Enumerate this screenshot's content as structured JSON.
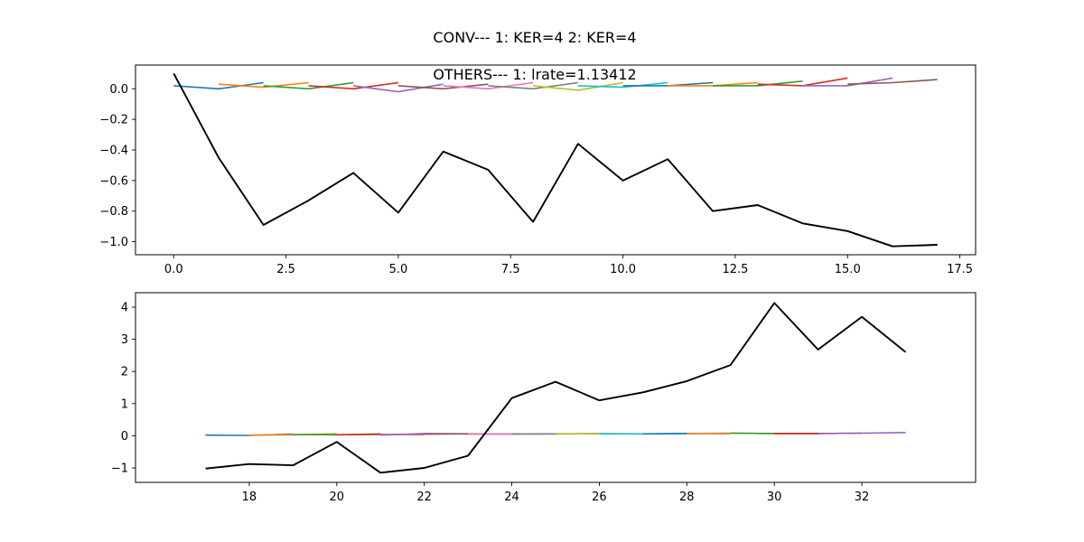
{
  "figure": {
    "suptitle": "CONV--- 1: KER=4   2: KER=4"
  },
  "chart_data": [
    {
      "type": "line",
      "title": "OTHERS--- 1: lrate=1.13412",
      "xlabel": "",
      "ylabel": "",
      "xlim": [
        -0.85,
        17.85
      ],
      "ylim": [
        -1.085,
        0.155
      ],
      "xticks": [
        0.0,
        2.5,
        5.0,
        7.5,
        10.0,
        12.5,
        15.0,
        17.5
      ],
      "xtick_labels": [
        "0.0",
        "2.5",
        "5.0",
        "7.5",
        "10.0",
        "12.5",
        "15.0",
        "17.5"
      ],
      "yticks": [
        0.0,
        -0.2,
        -0.4,
        -0.6,
        -0.8,
        -1.0
      ],
      "ytick_labels": [
        "0.0",
        "−0.2",
        "−0.4",
        "−0.6",
        "−0.8",
        "−1.0"
      ],
      "grid": false,
      "main_series": {
        "color": "#000000",
        "x": [
          0,
          1,
          2,
          3,
          4,
          5,
          6,
          7,
          8,
          9,
          10,
          11,
          12,
          13,
          14,
          15,
          16,
          17
        ],
        "y": [
          0.1,
          -0.45,
          -0.89,
          -0.73,
          -0.55,
          -0.81,
          -0.41,
          -0.53,
          -0.87,
          -0.36,
          -0.6,
          -0.46,
          -0.8,
          -0.76,
          -0.88,
          -0.93,
          -1.03,
          -1.02
        ]
      },
      "segments": [
        {
          "color": "#1f77b4",
          "x": [
            0,
            1,
            2
          ],
          "y": [
            0.02,
            0.0,
            0.04
          ]
        },
        {
          "color": "#ff7f0e",
          "x": [
            1,
            2,
            3
          ],
          "y": [
            0.03,
            0.01,
            0.04
          ]
        },
        {
          "color": "#2ca02c",
          "x": [
            2,
            3,
            4
          ],
          "y": [
            0.02,
            0.0,
            0.04
          ]
        },
        {
          "color": "#d62728",
          "x": [
            3,
            4,
            5
          ],
          "y": [
            0.02,
            0.0,
            0.04
          ]
        },
        {
          "color": "#9467bd",
          "x": [
            4,
            5,
            6
          ],
          "y": [
            0.02,
            -0.02,
            0.03
          ]
        },
        {
          "color": "#8c564b",
          "x": [
            5,
            6,
            7
          ],
          "y": [
            0.02,
            0.0,
            0.03
          ]
        },
        {
          "color": "#e377c2",
          "x": [
            6,
            7,
            8
          ],
          "y": [
            0.02,
            0.0,
            0.04
          ]
        },
        {
          "color": "#7f7f7f",
          "x": [
            7,
            8,
            9
          ],
          "y": [
            0.02,
            0.0,
            0.04
          ]
        },
        {
          "color": "#bcbd22",
          "x": [
            8,
            9,
            10
          ],
          "y": [
            0.02,
            -0.01,
            0.04
          ]
        },
        {
          "color": "#17becf",
          "x": [
            9,
            10,
            11
          ],
          "y": [
            0.02,
            0.01,
            0.04
          ]
        },
        {
          "color": "#1f77b4",
          "x": [
            10,
            11,
            12
          ],
          "y": [
            0.02,
            0.02,
            0.04
          ]
        },
        {
          "color": "#ff7f0e",
          "x": [
            11,
            12,
            13
          ],
          "y": [
            0.02,
            0.02,
            0.04
          ]
        },
        {
          "color": "#2ca02c",
          "x": [
            12,
            13,
            14
          ],
          "y": [
            0.02,
            0.02,
            0.05
          ]
        },
        {
          "color": "#d62728",
          "x": [
            13,
            14,
            15
          ],
          "y": [
            0.03,
            0.02,
            0.07
          ]
        },
        {
          "color": "#9467bd",
          "x": [
            14,
            15,
            16
          ],
          "y": [
            0.02,
            0.02,
            0.07
          ]
        },
        {
          "color": "#8c564b",
          "x": [
            15,
            16,
            17
          ],
          "y": [
            0.03,
            0.04,
            0.06
          ]
        }
      ]
    },
    {
      "type": "line",
      "title": "",
      "xlabel": "",
      "ylabel": "",
      "xlim": [
        15.4,
        34.6
      ],
      "ylim": [
        -1.45,
        4.45
      ],
      "xticks": [
        18,
        20,
        22,
        24,
        26,
        28,
        30,
        32
      ],
      "xtick_labels": [
        "18",
        "20",
        "22",
        "24",
        "26",
        "28",
        "30",
        "32"
      ],
      "yticks": [
        4,
        3,
        2,
        1,
        0,
        -1
      ],
      "ytick_labels": [
        "4",
        "3",
        "2",
        "1",
        "0",
        "−1"
      ],
      "grid": false,
      "main_series": {
        "color": "#000000",
        "x": [
          17,
          18,
          19,
          20,
          21,
          22,
          23,
          24,
          25,
          26,
          27,
          28,
          29,
          30,
          31,
          32,
          33
        ],
        "y": [
          -1.02,
          -0.88,
          -0.92,
          -0.19,
          -1.15,
          -1.0,
          -0.62,
          1.17,
          1.68,
          1.1,
          1.35,
          1.7,
          2.2,
          4.13,
          2.68,
          3.7,
          2.6
        ]
      },
      "segments": [
        {
          "color": "#1f77b4",
          "x": [
            17,
            18,
            19
          ],
          "y": [
            0.02,
            0.01,
            0.05
          ]
        },
        {
          "color": "#ff7f0e",
          "x": [
            18,
            19,
            20
          ],
          "y": [
            0.02,
            0.03,
            0.06
          ]
        },
        {
          "color": "#2ca02c",
          "x": [
            19,
            20,
            21
          ],
          "y": [
            0.04,
            0.03,
            0.06
          ]
        },
        {
          "color": "#d62728",
          "x": [
            20,
            21,
            22
          ],
          "y": [
            0.03,
            0.04,
            0.04
          ]
        },
        {
          "color": "#9467bd",
          "x": [
            21,
            22,
            23
          ],
          "y": [
            0.02,
            0.07,
            0.06
          ]
        },
        {
          "color": "#8c564b",
          "x": [
            22,
            23,
            24
          ],
          "y": [
            0.05,
            0.06,
            0.05
          ]
        },
        {
          "color": "#e377c2",
          "x": [
            23,
            24,
            25
          ],
          "y": [
            0.05,
            0.06,
            0.06
          ]
        },
        {
          "color": "#7f7f7f",
          "x": [
            24,
            25,
            26
          ],
          "y": [
            0.05,
            0.06,
            0.07
          ]
        },
        {
          "color": "#bcbd22",
          "x": [
            25,
            26,
            27
          ],
          "y": [
            0.05,
            0.07,
            0.06
          ]
        },
        {
          "color": "#17becf",
          "x": [
            26,
            27,
            28
          ],
          "y": [
            0.06,
            0.06,
            0.07
          ]
        },
        {
          "color": "#1f77b4",
          "x": [
            27,
            28,
            29
          ],
          "y": [
            0.06,
            0.07,
            0.07
          ]
        },
        {
          "color": "#ff7f0e",
          "x": [
            28,
            29,
            30
          ],
          "y": [
            0.07,
            0.08,
            0.07
          ]
        },
        {
          "color": "#2ca02c",
          "x": [
            29,
            30,
            31
          ],
          "y": [
            0.08,
            0.07,
            0.07
          ]
        },
        {
          "color": "#d62728",
          "x": [
            30,
            31,
            32
          ],
          "y": [
            0.07,
            0.07,
            0.08
          ]
        },
        {
          "color": "#9467bd",
          "x": [
            31,
            32,
            33
          ],
          "y": [
            0.07,
            0.08,
            0.1
          ]
        }
      ]
    }
  ]
}
